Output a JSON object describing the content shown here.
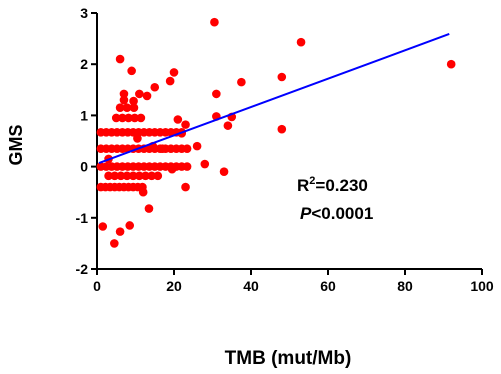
{
  "chart_data": {
    "type": "scatter",
    "title": "",
    "xlabel": "TMB (mut/Mb)",
    "ylabel": "GMS",
    "xlim": [
      0,
      100
    ],
    "ylim": [
      -2,
      3
    ],
    "xticks": [
      0,
      20,
      40,
      60,
      80,
      100
    ],
    "yticks": [
      -2,
      -1,
      0,
      1,
      2,
      3
    ],
    "grid": false,
    "point_color": "#ff0000",
    "line_color": "#0000ff",
    "annotation": {
      "r_label": "R",
      "r_exp": "2",
      "r_value": "=0.230",
      "p_label": "P",
      "p_value": "<0.0001"
    },
    "regression": {
      "x": [
        0.5,
        91.5
      ],
      "y": [
        0.07,
        2.59
      ]
    },
    "points": [
      [
        30.5,
        2.82
      ],
      [
        53,
        2.43
      ],
      [
        92,
        2.0
      ],
      [
        6,
        2.1
      ],
      [
        9,
        1.87
      ],
      [
        20,
        1.84
      ],
      [
        15,
        1.55
      ],
      [
        19,
        1.67
      ],
      [
        37.5,
        1.65
      ],
      [
        48,
        1.75
      ],
      [
        31,
        1.42
      ],
      [
        7,
        1.42
      ],
      [
        11,
        1.42
      ],
      [
        13,
        1.38
      ],
      [
        7,
        1.3
      ],
      [
        9.5,
        1.28
      ],
      [
        31,
        0.98
      ],
      [
        35,
        0.97
      ],
      [
        34,
        0.8
      ],
      [
        48,
        0.73
      ],
      [
        21,
        0.92
      ],
      [
        22,
        0.65
      ],
      [
        23,
        0.82
      ],
      [
        26,
        0.4
      ],
      [
        33,
        -0.1
      ],
      [
        28,
        0.05
      ],
      [
        23,
        -0.4
      ],
      [
        13.5,
        -0.82
      ],
      [
        1.5,
        -1.17
      ],
      [
        4.5,
        -1.5
      ],
      [
        6,
        -1.27
      ],
      [
        8.5,
        -1.15
      ],
      [
        12,
        -0.5
      ],
      [
        3,
        0.15
      ],
      [
        17,
        0.35
      ],
      [
        19.5,
        -0.05
      ],
      [
        10.5,
        0.55
      ],
      [
        14.5,
        0.4
      ]
    ],
    "clusters": [
      {
        "y": 0.67,
        "x_start": 1,
        "x_end": 23,
        "step": 1.4
      },
      {
        "y": 0.35,
        "x_start": 1,
        "x_end": 24,
        "step": 1.4
      },
      {
        "y": 0.0,
        "x_start": 1,
        "x_end": 24,
        "step": 1.4
      },
      {
        "y": -0.18,
        "x_start": 3,
        "x_end": 16,
        "step": 1.6
      },
      {
        "y": -0.4,
        "x_start": 1,
        "x_end": 12,
        "step": 1.2
      },
      {
        "y": 0.95,
        "x_start": 5,
        "x_end": 12,
        "step": 1.6
      },
      {
        "y": 1.15,
        "x_start": 6,
        "x_end": 11,
        "step": 1.8
      }
    ]
  }
}
